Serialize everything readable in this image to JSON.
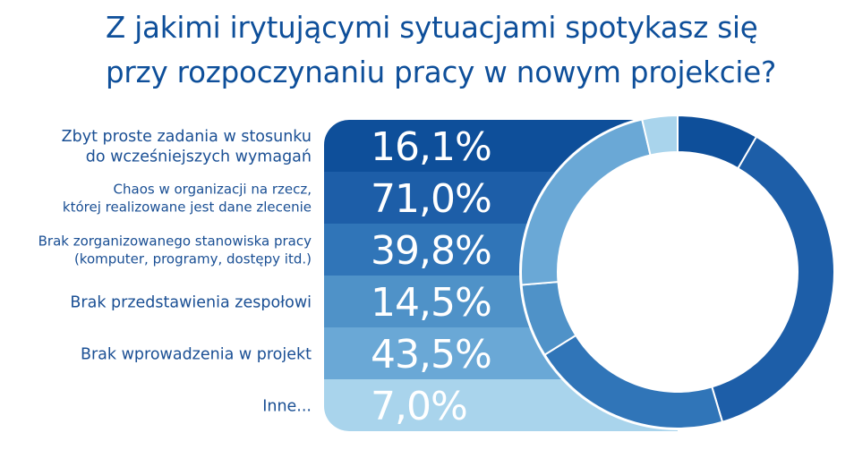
{
  "title": {
    "line1": "Z jakimi irytującymi sytuacjami spotykasz się",
    "line2": "przy rozpoczynaniu pracy w nowym projekcie?"
  },
  "colors": {
    "title": "#0e4f9a",
    "label": "#1a4f94",
    "bands": [
      "#0e4f9a",
      "#1d5ea8",
      "#3075b8",
      "#4f92c8",
      "#6aa8d6",
      "#a9d4ec"
    ]
  },
  "chart_data": {
    "type": "donut",
    "title": "Z jakimi irytującymi sytuacjami spotykasz się przy rozpoczynaniu pracy w nowym projekcie?",
    "unit": "%",
    "categories": [
      [
        "Zbyt proste zadania w stosunku",
        "do wcześniejszych wymagań"
      ],
      [
        "Chaos w organizacji na rzecz,",
        "której realizowane jest dane zlecenie"
      ],
      [
        "Brak zorganizowanego stanowiska pracy",
        "(komputer, programy, dostępy itd.)"
      ],
      [
        "Brak przedstawienia zespołowi"
      ],
      [
        "Brak wprowadzenia w projekt"
      ],
      [
        "Inne..."
      ]
    ],
    "values": [
      16.1,
      71.0,
      39.8,
      14.5,
      43.5,
      7.0
    ],
    "value_labels": [
      "16,1%",
      "71,0%",
      "39,8%",
      "14,5%",
      "43,5%",
      "7,0%"
    ],
    "legend": "left"
  }
}
